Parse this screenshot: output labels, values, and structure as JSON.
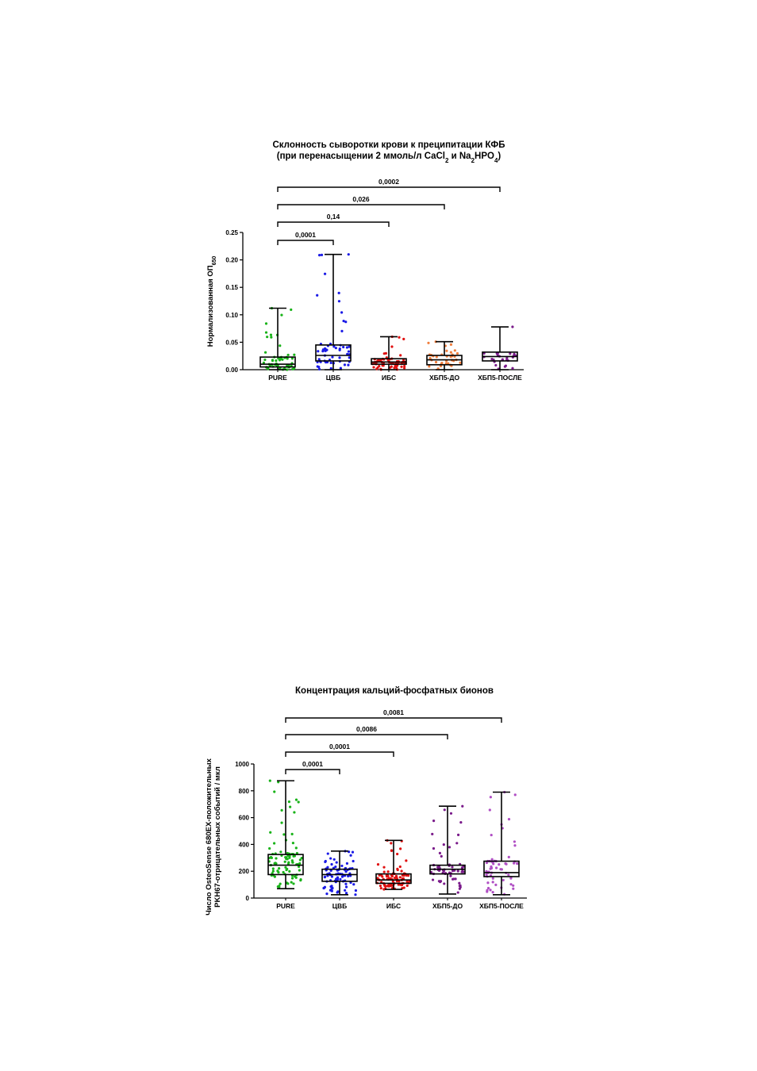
{
  "chart_data": [
    {
      "type": "box",
      "title": "Склонность сыворотки крови к преципитации КФБ",
      "subtitle": "(при перенасыщении 2 ммоль/л CaCl₂ и Na₂HPO₄)",
      "ylabel": "Нормализованная ОП₆₅₀",
      "xlabel": "",
      "ylim": [
        0,
        0.25
      ],
      "yticks": [
        "0.00",
        "0.05",
        "0.10",
        "0.15",
        "0.20",
        "0.25"
      ],
      "categories": [
        "PURE",
        "ЦВБ",
        "ИБС",
        "ХБП5-ДО",
        "ХБП5-ПОСЛЕ"
      ],
      "colors": [
        "#19b319",
        "#1a1ae6",
        "#e01010",
        "#f07d3c",
        "#7a1a8a"
      ],
      "boxes": [
        {
          "min": 0.0,
          "q1": 0.005,
          "median": 0.01,
          "q3": 0.023,
          "max": 0.112
        },
        {
          "min": 0.0,
          "q1": 0.016,
          "median": 0.026,
          "q3": 0.045,
          "max": 0.21
        },
        {
          "min": 0.0,
          "q1": 0.01,
          "median": 0.014,
          "q3": 0.02,
          "max": 0.06
        },
        {
          "min": 0.0,
          "q1": 0.009,
          "median": 0.018,
          "q3": 0.026,
          "max": 0.051
        },
        {
          "min": 0.0,
          "q1": 0.016,
          "median": 0.024,
          "q3": 0.032,
          "max": 0.078
        }
      ],
      "comparisons": [
        {
          "from": "PURE",
          "to": "ЦВБ",
          "p": "0,0001"
        },
        {
          "from": "PURE",
          "to": "ИБС",
          "p": "0,14"
        },
        {
          "from": "PURE",
          "to": "ХБП5-ДО",
          "p": "0,026"
        },
        {
          "from": "PURE",
          "to": "ХБП5-ПОСЛЕ",
          "p": "0,0002"
        }
      ],
      "points_per_group": [
        60,
        55,
        70,
        35,
        25
      ]
    },
    {
      "type": "box",
      "title": "Концентрация кальций-фосфатных бионов",
      "ylabel": "Число OsteoSense 680EX-положительных PKH67-отрицательных событий / мкл",
      "ylabel_line1": "Число OsteoSense 680EX-положительных",
      "ylabel_line2": "PKH67-отрицательных событий / мкл",
      "xlabel": "",
      "ylim": [
        0,
        1000
      ],
      "yticks": [
        "0",
        "200",
        "400",
        "600",
        "800",
        "1000"
      ],
      "categories": [
        "PURE",
        "ЦВБ",
        "ИБС",
        "ХБП5-ДО",
        "ХБП5-ПОСЛЕ"
      ],
      "colors": [
        "#19b319",
        "#1a1ae6",
        "#e01010",
        "#7a1a8a",
        "#b04fc4"
      ],
      "boxes": [
        {
          "min": 70,
          "q1": 175,
          "median": 245,
          "q3": 325,
          "max": 875
        },
        {
          "min": 25,
          "q1": 125,
          "median": 175,
          "q3": 215,
          "max": 350
        },
        {
          "min": 65,
          "q1": 110,
          "median": 135,
          "q3": 180,
          "max": 430
        },
        {
          "min": 30,
          "q1": 180,
          "median": 215,
          "q3": 245,
          "max": 685
        },
        {
          "min": 25,
          "q1": 160,
          "median": 190,
          "q3": 275,
          "max": 790
        }
      ],
      "comparisons": [
        {
          "from": "PURE",
          "to": "ЦВБ",
          "p": "0,0001"
        },
        {
          "from": "PURE",
          "to": "ИБС",
          "p": "0,0001"
        },
        {
          "from": "PURE",
          "to": "ХБП5-ДО",
          "p": "0,0086"
        },
        {
          "from": "PURE",
          "to": "ХБП5-ПОСЛЕ",
          "p": "0,0081"
        }
      ],
      "points_per_group": [
        90,
        80,
        90,
        60,
        60
      ]
    }
  ]
}
